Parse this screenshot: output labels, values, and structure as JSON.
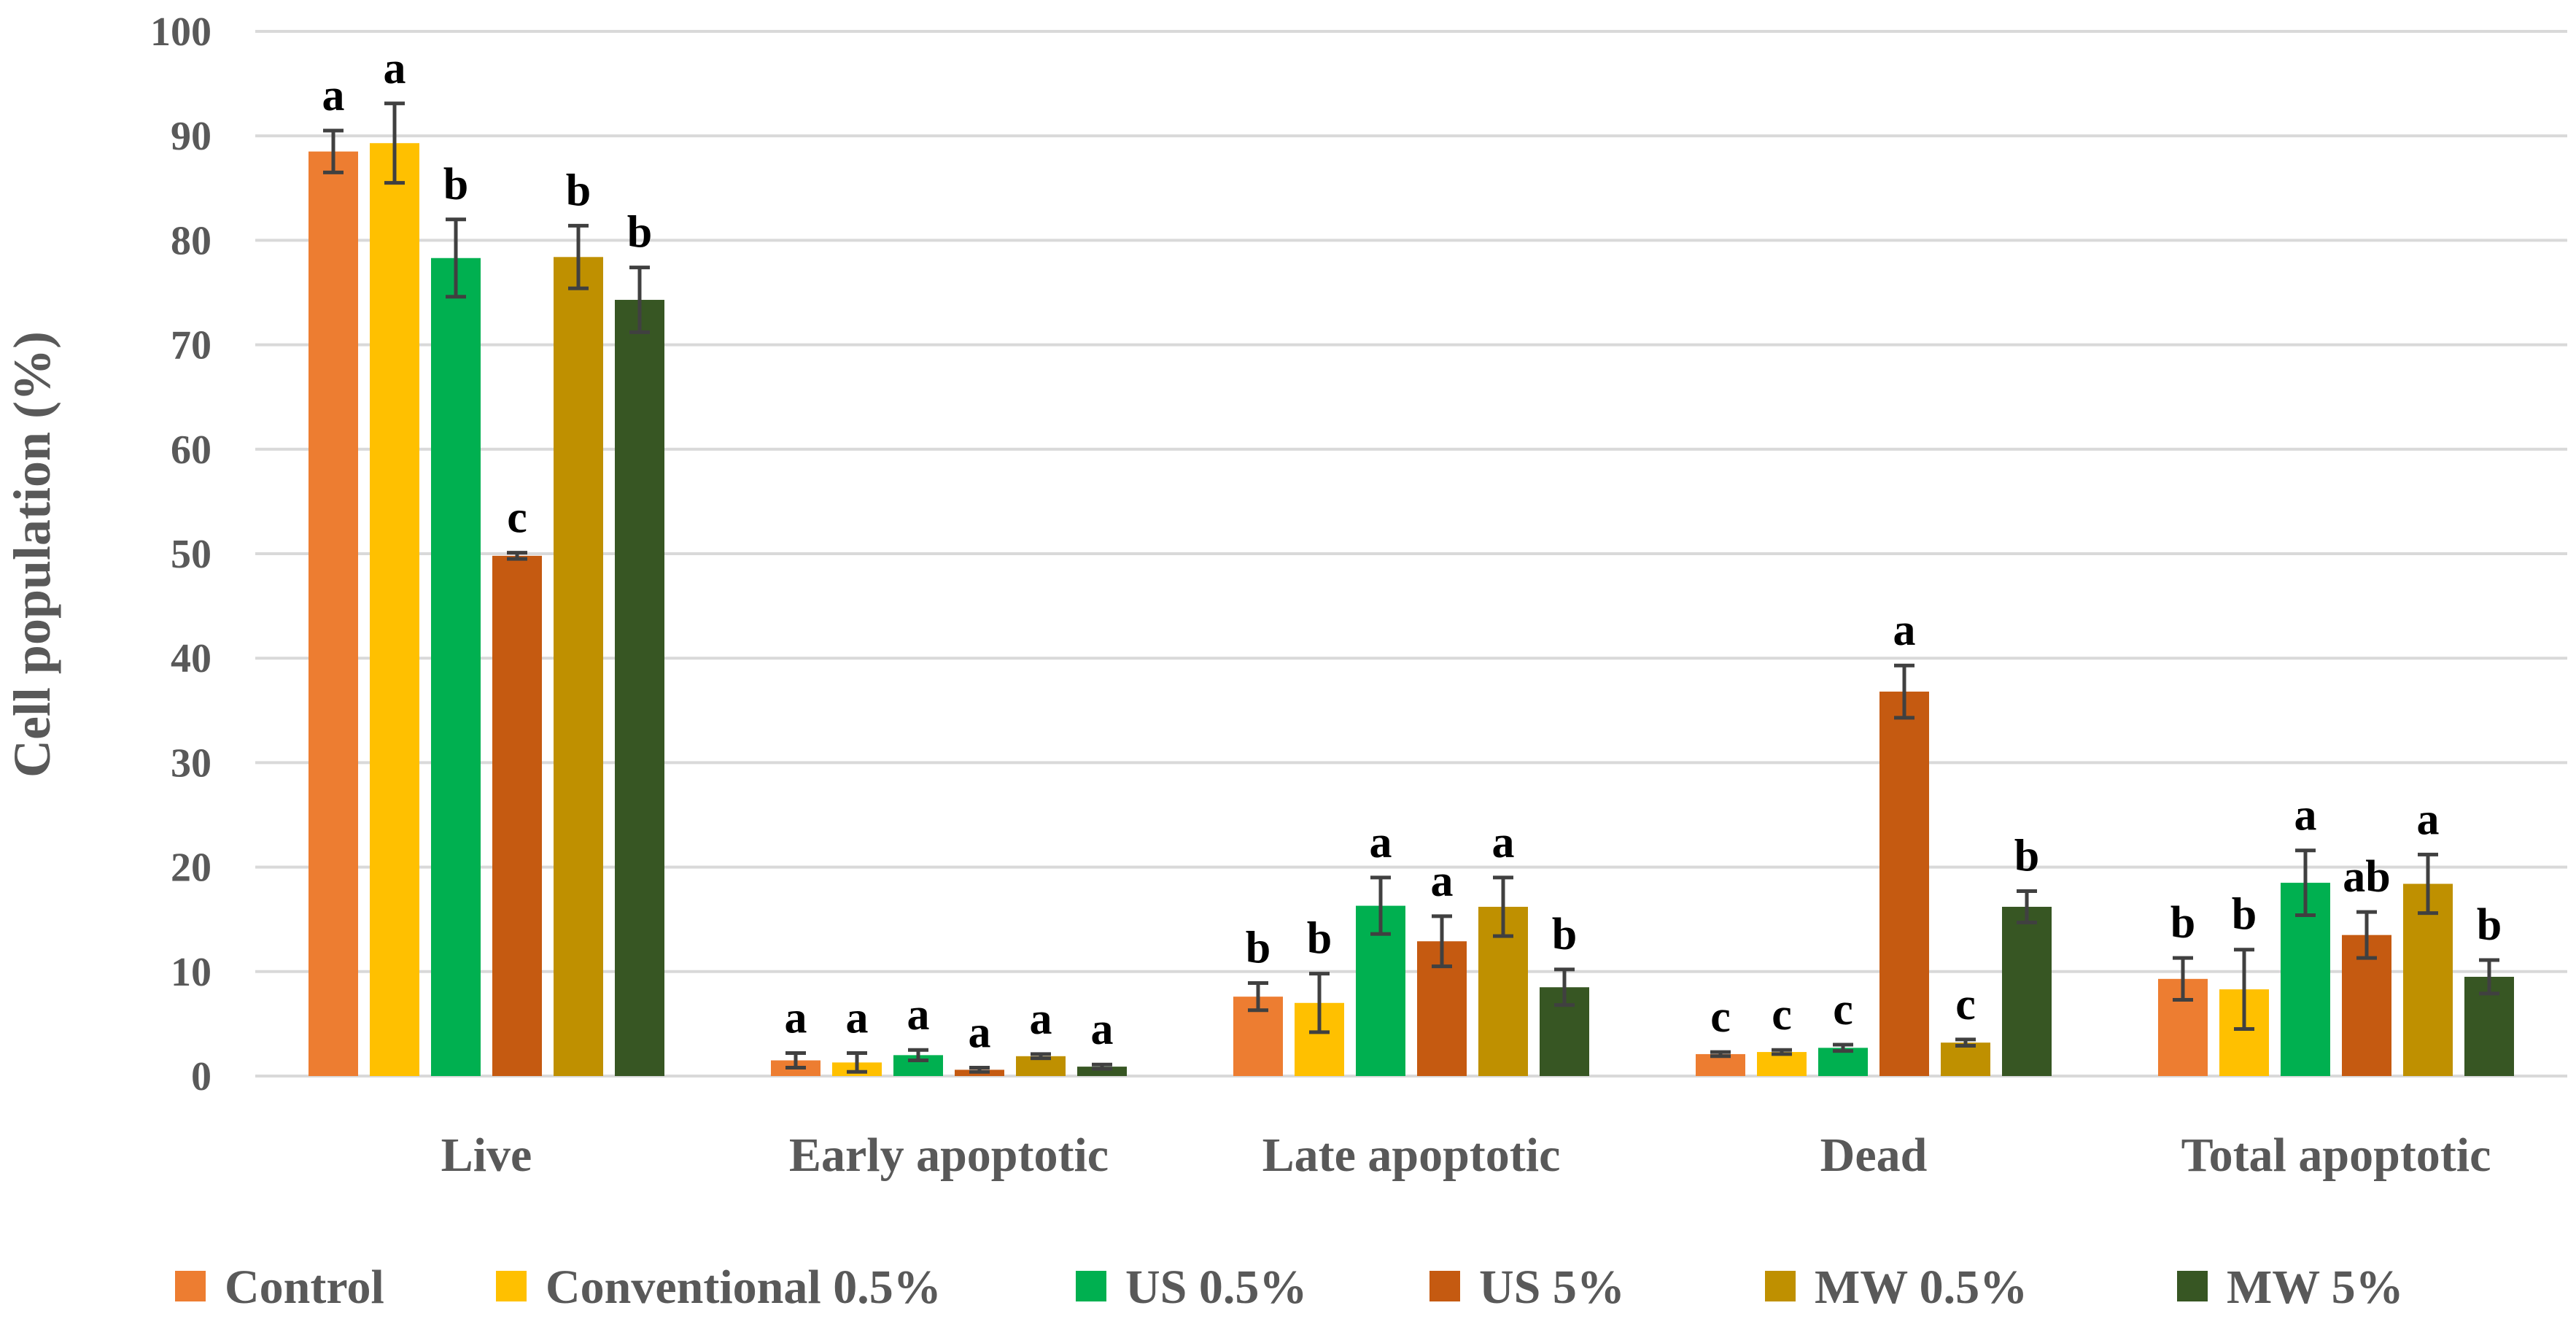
{
  "chart_data": {
    "type": "bar",
    "title": "",
    "xlabel": "",
    "ylabel": "Cell population (%)",
    "ylim": [
      0,
      100
    ],
    "yticks": [
      "0",
      "10",
      "20",
      "30",
      "40",
      "50",
      "60",
      "70",
      "80",
      "90",
      "100"
    ],
    "grid": true,
    "legend_position": "bottom",
    "categories": [
      "Live",
      "Early apoptotic",
      "Late apoptotic",
      "Dead",
      "Total apoptotic"
    ],
    "series": [
      {
        "name": "Control",
        "color": "#ED7D31",
        "values": [
          88.5,
          1.5,
          7.6,
          2.1,
          9.3
        ],
        "errors": [
          2.0,
          0.7,
          1.3,
          0.2,
          2.0
        ],
        "labels": [
          "a",
          "a",
          "b",
          "c",
          "b"
        ]
      },
      {
        "name": "Conventional 0.5%",
        "color": "#FFC000",
        "values": [
          89.3,
          1.3,
          7.0,
          2.3,
          8.3
        ],
        "errors": [
          3.8,
          0.9,
          2.8,
          0.2,
          3.8
        ],
        "labels": [
          "a",
          "a",
          "b",
          "c",
          "b"
        ]
      },
      {
        "name": "US 0.5%",
        "color": "#00B050",
        "values": [
          78.3,
          2.0,
          16.3,
          2.7,
          18.5
        ],
        "errors": [
          3.7,
          0.5,
          2.7,
          0.3,
          3.1
        ],
        "labels": [
          "b",
          "a",
          "a",
          "c",
          "a"
        ]
      },
      {
        "name": "US 5%",
        "color": "#C55A11",
        "values": [
          49.8,
          0.6,
          12.9,
          36.8,
          13.5
        ],
        "errors": [
          0.3,
          0.2,
          2.4,
          2.5,
          2.2
        ],
        "labels": [
          "c",
          "a",
          "a",
          "a",
          "ab"
        ]
      },
      {
        "name": "MW 0.5%",
        "color": "#BF9000",
        "values": [
          78.4,
          1.9,
          16.2,
          3.2,
          18.4
        ],
        "errors": [
          3.0,
          0.2,
          2.8,
          0.3,
          2.8
        ],
        "labels": [
          "b",
          "a",
          "a",
          "c",
          "a"
        ]
      },
      {
        "name": "MW 5%",
        "color": "#375623",
        "values": [
          74.3,
          0.9,
          8.5,
          16.2,
          9.5
        ],
        "errors": [
          3.1,
          0.2,
          1.7,
          1.5,
          1.6
        ],
        "labels": [
          "b",
          "a",
          "b",
          "b",
          "b"
        ]
      }
    ]
  }
}
